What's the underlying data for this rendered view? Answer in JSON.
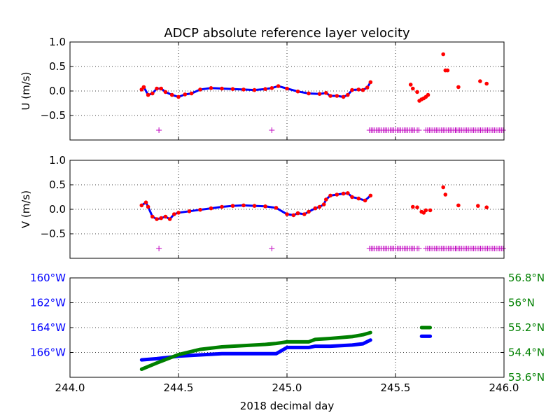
{
  "figure": {
    "title": "ADCP absolute reference layer velocity",
    "xlabel": "2018 decimal day"
  },
  "colors": {
    "u_points": "#ff0000",
    "u_line": "#0000ff",
    "flag_markers": "#bf00bf",
    "longitude": "#0000ff",
    "latitude": "#008000",
    "grid": "#000000"
  },
  "chart_data": [
    {
      "type": "line",
      "panel": "u",
      "title": "ADCP absolute reference layer velocity",
      "ylabel": "U (m/s)",
      "xlim": [
        244.0,
        246.0
      ],
      "ylim": [
        -1.0,
        1.0
      ],
      "yticks": [
        -0.5,
        0.0,
        0.5,
        1.0
      ],
      "ytick_labels": [
        "−0.5",
        "0.0",
        "0.5",
        "1.0"
      ],
      "xticks": [
        244.5,
        245.0,
        245.5
      ],
      "grid": true,
      "series": [
        {
          "marker": "dot+line",
          "x": [
            244.33,
            244.34,
            244.36,
            244.38,
            244.4,
            244.42,
            244.44,
            244.47,
            244.5,
            244.53,
            244.56,
            244.6,
            244.65,
            244.7,
            244.75,
            244.8,
            244.85,
            244.9,
            244.93,
            244.96,
            245.0,
            245.05,
            245.1,
            245.15,
            245.18,
            245.2,
            245.23,
            245.26,
            245.28,
            245.3,
            245.33,
            245.35,
            245.37,
            245.385
          ],
          "y": [
            0.03,
            0.08,
            -0.08,
            -0.05,
            0.05,
            0.05,
            -0.02,
            -0.08,
            -0.12,
            -0.07,
            -0.05,
            0.03,
            0.06,
            0.05,
            0.04,
            0.03,
            0.02,
            0.04,
            0.06,
            0.1,
            0.05,
            -0.01,
            -0.05,
            -0.06,
            -0.04,
            -0.1,
            -0.1,
            -0.12,
            -0.08,
            0.02,
            0.03,
            0.02,
            0.07,
            0.18
          ]
        },
        {
          "marker": "dot",
          "x": [
            245.57,
            245.58,
            245.6,
            245.61,
            245.62,
            245.63,
            245.64,
            245.65,
            245.72,
            245.73,
            245.74,
            245.79,
            245.89,
            245.92
          ],
          "y": [
            0.13,
            0.05,
            -0.02,
            -0.2,
            -0.17,
            -0.15,
            -0.12,
            -0.08,
            0.75,
            0.42,
            0.42,
            0.08,
            0.2,
            0.15
          ]
        },
        {
          "marker": "plus",
          "y": -0.8,
          "x": [
            244.41,
            244.93
          ],
          "x_ranges": [
            [
              245.38,
              245.59
            ],
            [
              245.6,
              245.61
            ],
            [
              245.64,
              245.78
            ],
            [
              245.78,
              246.0
            ]
          ]
        }
      ]
    },
    {
      "type": "line",
      "panel": "v",
      "ylabel": "V (m/s)",
      "xlim": [
        244.0,
        246.0
      ],
      "ylim": [
        -1.0,
        1.0
      ],
      "yticks": [
        -0.5,
        0.0,
        0.5,
        1.0
      ],
      "ytick_labels": [
        "−0.5",
        "0.0",
        "0.5",
        "1.0"
      ],
      "xticks": [
        244.5,
        245.0,
        245.5
      ],
      "grid": true,
      "series": [
        {
          "marker": "dot+line",
          "x": [
            244.33,
            244.35,
            244.36,
            244.38,
            244.4,
            244.42,
            244.44,
            244.46,
            244.48,
            244.5,
            244.55,
            244.6,
            244.65,
            244.7,
            244.75,
            244.8,
            244.85,
            244.9,
            244.95,
            245.0,
            245.03,
            245.05,
            245.08,
            245.1,
            245.13,
            245.15,
            245.17,
            245.18,
            245.2,
            245.23,
            245.26,
            245.28,
            245.3,
            245.33,
            245.36,
            245.385
          ],
          "y": [
            0.08,
            0.14,
            0.05,
            -0.15,
            -0.2,
            -0.18,
            -0.15,
            -0.2,
            -0.1,
            -0.07,
            -0.04,
            -0.01,
            0.02,
            0.05,
            0.07,
            0.08,
            0.07,
            0.06,
            0.03,
            -0.1,
            -0.12,
            -0.08,
            -0.1,
            -0.05,
            0.02,
            0.05,
            0.1,
            0.2,
            0.28,
            0.3,
            0.32,
            0.33,
            0.25,
            0.22,
            0.18,
            0.28
          ]
        },
        {
          "marker": "dot",
          "x": [
            245.58,
            245.6,
            245.62,
            245.63,
            245.64,
            245.66,
            245.72,
            245.73,
            245.79,
            245.88,
            245.92
          ],
          "y": [
            0.05,
            0.04,
            -0.05,
            -0.07,
            -0.02,
            -0.02,
            0.45,
            0.3,
            0.08,
            0.07,
            0.04
          ],
          "note_x": [
            245.6,
            245.72
          ]
        },
        {
          "marker": "plus",
          "y": -0.8,
          "x": [
            244.41,
            244.93
          ],
          "x_ranges": [
            [
              245.38,
              245.59
            ],
            [
              245.6,
              245.61
            ],
            [
              245.64,
              245.78
            ],
            [
              245.78,
              246.0
            ]
          ]
        }
      ]
    },
    {
      "type": "line",
      "panel": "position",
      "xlabel": "2018 decimal day",
      "xlim": [
        244.0,
        246.0
      ],
      "xticks": [
        244.0,
        244.5,
        245.0,
        245.5,
        246.0
      ],
      "xtick_labels": [
        "244.0",
        "244.5",
        "245.0",
        "245.5",
        "246.0"
      ],
      "grid": true,
      "left_axis": {
        "quantity": "longitude",
        "ylim": [
          -168.0,
          -160.0
        ],
        "yticks": [
          -166,
          -164,
          -162,
          -160
        ],
        "ytick_labels": [
          "166°W",
          "164°W",
          "162°W",
          "160°W"
        ]
      },
      "right_axis": {
        "quantity": "latitude",
        "ylim": [
          53.6,
          56.8
        ],
        "yticks": [
          53.6,
          54.4,
          55.2,
          56.0,
          56.8
        ],
        "ytick_labels": [
          "53.6°N",
          "54.4°N",
          "55.2°N",
          "56°N",
          "56.8°N"
        ]
      },
      "series": [
        {
          "axis": "left",
          "segments": [
            {
              "x": [
                244.33,
                244.4,
                244.5,
                244.6,
                244.7,
                244.8,
                244.9,
                244.95,
                245.0,
                245.1,
                245.13,
                245.2,
                245.3,
                245.35,
                245.385
              ],
              "y": [
                -166.6,
                -166.5,
                -166.3,
                -166.2,
                -166.1,
                -166.1,
                -166.1,
                -166.1,
                -165.6,
                -165.6,
                -165.5,
                -165.5,
                -165.4,
                -165.3,
                -165.0
              ]
            },
            {
              "x": [
                245.62,
                245.66
              ],
              "y": [
                -164.7,
                -164.7
              ]
            }
          ]
        },
        {
          "axis": "right",
          "segments": [
            {
              "x": [
                244.33,
                244.4,
                244.5,
                244.6,
                244.7,
                244.8,
                244.9,
                244.95,
                245.0,
                245.1,
                245.13,
                245.2,
                245.3,
                245.35,
                245.385
              ],
              "y": [
                53.86,
                54.06,
                54.33,
                54.5,
                54.58,
                54.62,
                54.66,
                54.69,
                54.74,
                54.74,
                54.82,
                54.85,
                54.91,
                54.97,
                55.04
              ]
            },
            {
              "x": [
                245.62,
                245.66
              ],
              "y": [
                55.2,
                55.2
              ]
            }
          ]
        }
      ]
    }
  ]
}
